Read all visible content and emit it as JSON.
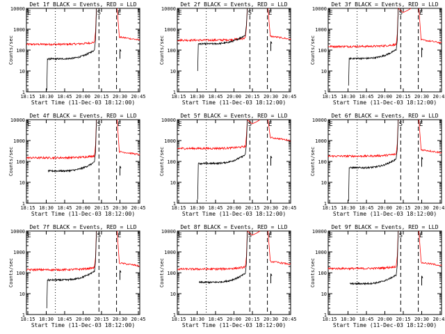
{
  "chart_data": {
    "type": "line",
    "y_scale": "log",
    "ylim": [
      1,
      10000
    ],
    "y_ticks": [
      "1",
      "10",
      "100",
      "1000",
      "10000"
    ],
    "ylabel": "Counts/sec",
    "xlabel": "Start Time (11-Dec-03 18:12:00)",
    "x_ticks": [
      "18:15",
      "18:30",
      "18:45",
      "20:00",
      "20:15",
      "20:30",
      "20:45"
    ],
    "legend": "BLACK = Events, RED = LLD",
    "series_colors": {
      "Events": "#000000",
      "LLD": "#ff0000"
    },
    "event_markers": {
      "left": "E",
      "middle": "S",
      "right": "E"
    },
    "panels": [
      {
        "title": "Det 1f BLACK = Events, RED = LLD",
        "events_level": 38,
        "events_end": 110,
        "lld_level": 190,
        "lld_end": 300,
        "events_start": 1.2,
        "flag_start": true,
        "hump": false
      },
      {
        "title": "Det 2f BLACK = Events, RED = LLD",
        "events_level": 200,
        "events_end": 260,
        "lld_level": 300,
        "lld_end": 330,
        "events_start": 10,
        "flag_start": true,
        "hump": false
      },
      {
        "title": "Det 3f BLACK = Events, RED = LLD",
        "events_level": 40,
        "events_end": 130,
        "lld_level": 150,
        "lld_end": 220,
        "events_start": 2,
        "flag_start": true,
        "hump": true
      },
      {
        "title": "Det 4f BLACK = Events, RED = LLD",
        "events_level": 35,
        "events_end": 60,
        "lld_level": 150,
        "lld_end": 210,
        "events_start": 0,
        "flag_start": false,
        "hump": false
      },
      {
        "title": "Det 5f BLACK = Events, RED = LLD",
        "events_level": 80,
        "events_end": 180,
        "lld_level": 420,
        "lld_end": 1000,
        "events_start": 1.5,
        "flag_start": true,
        "hump": true
      },
      {
        "title": "Det 6f BLACK = Events, RED = LLD",
        "events_level": 50,
        "events_end": 160,
        "lld_level": 180,
        "lld_end": 260,
        "events_start": 1.3,
        "flag_start": true,
        "hump": false
      },
      {
        "title": "Det 7f BLACK = Events, RED = LLD",
        "events_level": 45,
        "events_end": 130,
        "lld_level": 140,
        "lld_end": 210,
        "events_start": 2,
        "flag_start": true,
        "hump": false
      },
      {
        "title": "Det 8f BLACK = Events, RED = LLD",
        "events_level": 35,
        "events_end": 90,
        "lld_level": 150,
        "lld_end": 250,
        "events_start": 0,
        "flag_start": false,
        "hump": true
      },
      {
        "title": "Det 9f BLACK = Events, RED = LLD",
        "events_level": 30,
        "events_end": 70,
        "lld_level": 160,
        "lld_end": 220,
        "events_start": 0,
        "flag_start": false,
        "hump": false
      }
    ]
  }
}
